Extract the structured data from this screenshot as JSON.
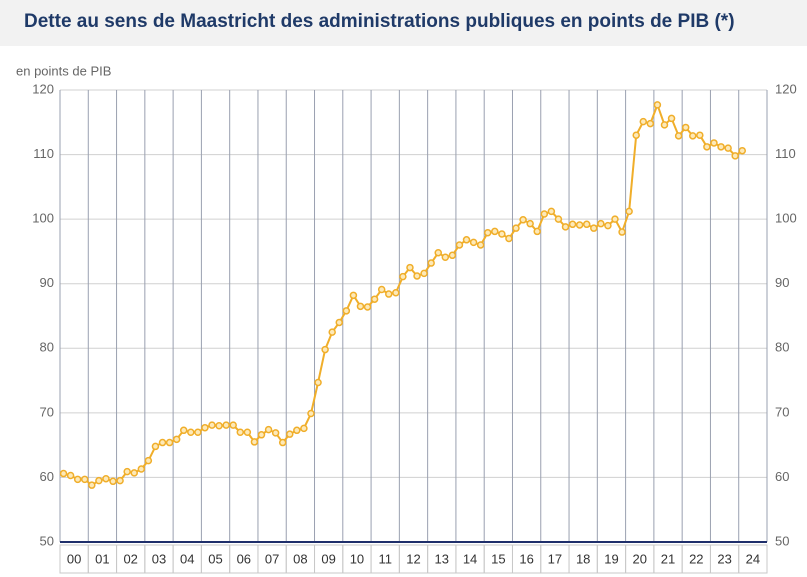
{
  "chart_data": {
    "type": "line",
    "title": "Dette au sens de Maastricht des administrations publiques en points de PIB (*)",
    "ylabel": "en points de PIB",
    "color": "#f0ae2a",
    "x": [
      2000.125,
      2000.375,
      2000.625,
      2000.875,
      2001.125,
      2001.375,
      2001.625,
      2001.875,
      2002.125,
      2002.375,
      2002.625,
      2002.875,
      2003.125,
      2003.375,
      2003.625,
      2003.875,
      2004.125,
      2004.375,
      2004.625,
      2004.875,
      2005.125,
      2005.375,
      2005.625,
      2005.875,
      2006.125,
      2006.375,
      2006.625,
      2006.875,
      2007.125,
      2007.375,
      2007.625,
      2007.875,
      2008.125,
      2008.375,
      2008.625,
      2008.875,
      2009.125,
      2009.375,
      2009.625,
      2009.875,
      2010.125,
      2010.375,
      2010.625,
      2010.875,
      2011.125,
      2011.375,
      2011.625,
      2011.875,
      2012.125,
      2012.375,
      2012.625,
      2012.875,
      2013.125,
      2013.375,
      2013.625,
      2013.875,
      2014.125,
      2014.375,
      2014.625,
      2014.875,
      2015.125,
      2015.375,
      2015.625,
      2015.875,
      2016.125,
      2016.375,
      2016.625,
      2016.875,
      2017.125,
      2017.375,
      2017.625,
      2017.875,
      2018.125,
      2018.375,
      2018.625,
      2018.875,
      2019.125,
      2019.375,
      2019.625,
      2019.875,
      2020.125,
      2020.375,
      2020.625,
      2020.875,
      2021.125,
      2021.375,
      2021.625,
      2021.875,
      2022.125,
      2022.375,
      2022.625,
      2022.875,
      2023.125,
      2023.375,
      2023.625,
      2023.875,
      2024.125
    ],
    "values": [
      60.6,
      60.3,
      59.7,
      59.7,
      58.8,
      59.5,
      59.8,
      59.4,
      59.5,
      60.9,
      60.7,
      61.3,
      62.6,
      64.8,
      65.4,
      65.4,
      65.9,
      67.3,
      67.0,
      67.0,
      67.7,
      68.1,
      68.0,
      68.1,
      68.1,
      67.0,
      67.0,
      65.5,
      66.6,
      67.4,
      66.9,
      65.4,
      66.7,
      67.3,
      67.6,
      69.9,
      74.7,
      79.8,
      82.5,
      84.0,
      85.8,
      88.2,
      86.5,
      86.4,
      87.6,
      89.1,
      88.4,
      88.6,
      91.1,
      92.5,
      91.2,
      91.6,
      93.2,
      94.8,
      94.1,
      94.4,
      96.0,
      96.8,
      96.4,
      96.0,
      97.9,
      98.1,
      97.7,
      97.0,
      98.6,
      99.9,
      99.3,
      98.1,
      100.8,
      101.2,
      100.0,
      98.8,
      99.2,
      99.1,
      99.2,
      98.6,
      99.3,
      99.0,
      100.0,
      98.0,
      101.2,
      113.0,
      115.1,
      114.8,
      117.7,
      114.6,
      115.6,
      112.9,
      114.2,
      112.9,
      113.0,
      111.2,
      111.8,
      111.2,
      111.0,
      109.8,
      110.6
    ],
    "xlim": [
      2000,
      2025
    ],
    "xticks": [
      {
        "value": 2000.5,
        "label": "00"
      },
      {
        "value": 2001.5,
        "label": "01"
      },
      {
        "value": 2002.5,
        "label": "02"
      },
      {
        "value": 2003.5,
        "label": "03"
      },
      {
        "value": 2004.5,
        "label": "04"
      },
      {
        "value": 2005.5,
        "label": "05"
      },
      {
        "value": 2006.5,
        "label": "06"
      },
      {
        "value": 2007.5,
        "label": "07"
      },
      {
        "value": 2008.5,
        "label": "08"
      },
      {
        "value": 2009.5,
        "label": "09"
      },
      {
        "value": 2010.5,
        "label": "10"
      },
      {
        "value": 2011.5,
        "label": "11"
      },
      {
        "value": 2012.5,
        "label": "12"
      },
      {
        "value": 2013.5,
        "label": "13"
      },
      {
        "value": 2014.5,
        "label": "14"
      },
      {
        "value": 2015.5,
        "label": "15"
      },
      {
        "value": 2016.5,
        "label": "16"
      },
      {
        "value": 2017.5,
        "label": "17"
      },
      {
        "value": 2018.5,
        "label": "18"
      },
      {
        "value": 2019.5,
        "label": "19"
      },
      {
        "value": 2020.5,
        "label": "20"
      },
      {
        "value": 2021.5,
        "label": "21"
      },
      {
        "value": 2022.5,
        "label": "22"
      },
      {
        "value": 2023.5,
        "label": "23"
      },
      {
        "value": 2024.5,
        "label": "24"
      }
    ],
    "ylim": [
      50,
      120
    ],
    "yticks": [
      50,
      60,
      70,
      80,
      90,
      100,
      110,
      120
    ],
    "grid": true,
    "yticks_both_sides": true
  }
}
